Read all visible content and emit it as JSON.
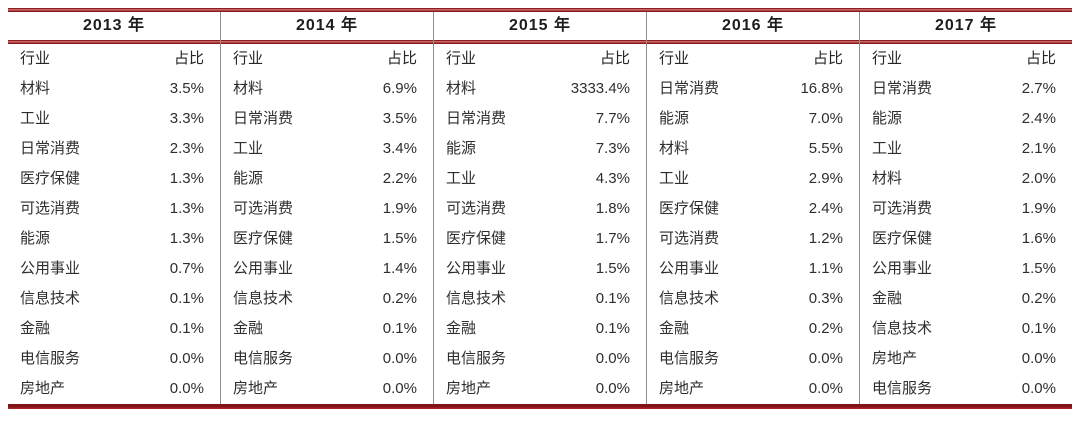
{
  "colors": {
    "rule_red": "#8e1b1d",
    "divider_gray": "#8f8f8f",
    "text": "#2e2e2e"
  },
  "chart_data": {
    "type": "table",
    "column_groups": [
      "2013 年",
      "2014 年",
      "2015 年",
      "2016 年",
      "2017 年"
    ],
    "sub_columns": [
      "行业",
      "占比"
    ],
    "tables": [
      {
        "year": "2013 年",
        "rows": [
          {
            "industry": "材料",
            "share": "3.5%"
          },
          {
            "industry": "工业",
            "share": "3.3%"
          },
          {
            "industry": "日常消费",
            "share": "2.3%"
          },
          {
            "industry": "医疗保健",
            "share": "1.3%"
          },
          {
            "industry": "可选消费",
            "share": "1.3%"
          },
          {
            "industry": "能源",
            "share": "1.3%"
          },
          {
            "industry": "公用事业",
            "share": "0.7%"
          },
          {
            "industry": "信息技术",
            "share": "0.1%"
          },
          {
            "industry": "金融",
            "share": "0.1%"
          },
          {
            "industry": "电信服务",
            "share": "0.0%"
          },
          {
            "industry": "房地产",
            "share": "0.0%"
          }
        ]
      },
      {
        "year": "2014 年",
        "rows": [
          {
            "industry": "材料",
            "share": "6.9%"
          },
          {
            "industry": "日常消费",
            "share": "3.5%"
          },
          {
            "industry": "工业",
            "share": "3.4%"
          },
          {
            "industry": "能源",
            "share": "2.2%"
          },
          {
            "industry": "可选消费",
            "share": "1.9%"
          },
          {
            "industry": "医疗保健",
            "share": "1.5%"
          },
          {
            "industry": "公用事业",
            "share": "1.4%"
          },
          {
            "industry": "信息技术",
            "share": "0.2%"
          },
          {
            "industry": "金融",
            "share": "0.1%"
          },
          {
            "industry": "电信服务",
            "share": "0.0%"
          },
          {
            "industry": "房地产",
            "share": "0.0%"
          }
        ]
      },
      {
        "year": "2015 年",
        "rows": [
          {
            "industry": "材料",
            "share": "3333.4%"
          },
          {
            "industry": "日常消费",
            "share": "7.7%"
          },
          {
            "industry": "能源",
            "share": "7.3%"
          },
          {
            "industry": "工业",
            "share": "4.3%"
          },
          {
            "industry": "可选消费",
            "share": "1.8%"
          },
          {
            "industry": "医疗保健",
            "share": "1.7%"
          },
          {
            "industry": "公用事业",
            "share": "1.5%"
          },
          {
            "industry": "信息技术",
            "share": "0.1%"
          },
          {
            "industry": "金融",
            "share": "0.1%"
          },
          {
            "industry": "电信服务",
            "share": "0.0%"
          },
          {
            "industry": "房地产",
            "share": "0.0%"
          }
        ]
      },
      {
        "year": "2016 年",
        "rows": [
          {
            "industry": "日常消费",
            "share": "16.8%"
          },
          {
            "industry": "能源",
            "share": "7.0%"
          },
          {
            "industry": "材料",
            "share": "5.5%"
          },
          {
            "industry": "工业",
            "share": "2.9%"
          },
          {
            "industry": "医疗保健",
            "share": "2.4%"
          },
          {
            "industry": "可选消费",
            "share": "1.2%"
          },
          {
            "industry": "公用事业",
            "share": "1.1%"
          },
          {
            "industry": "信息技术",
            "share": "0.3%"
          },
          {
            "industry": "金融",
            "share": "0.2%"
          },
          {
            "industry": "电信服务",
            "share": "0.0%"
          },
          {
            "industry": "房地产",
            "share": "0.0%"
          }
        ]
      },
      {
        "year": "2017 年",
        "rows": [
          {
            "industry": "日常消费",
            "share": "2.7%"
          },
          {
            "industry": "能源",
            "share": "2.4%"
          },
          {
            "industry": "工业",
            "share": "2.1%"
          },
          {
            "industry": "材料",
            "share": "2.0%"
          },
          {
            "industry": "可选消费",
            "share": "1.9%"
          },
          {
            "industry": "医疗保健",
            "share": "1.6%"
          },
          {
            "industry": "公用事业",
            "share": "1.5%"
          },
          {
            "industry": "金融",
            "share": "0.2%"
          },
          {
            "industry": "信息技术",
            "share": "0.1%"
          },
          {
            "industry": "房地产",
            "share": "0.0%"
          },
          {
            "industry": "电信服务",
            "share": "0.0%"
          }
        ]
      }
    ]
  }
}
